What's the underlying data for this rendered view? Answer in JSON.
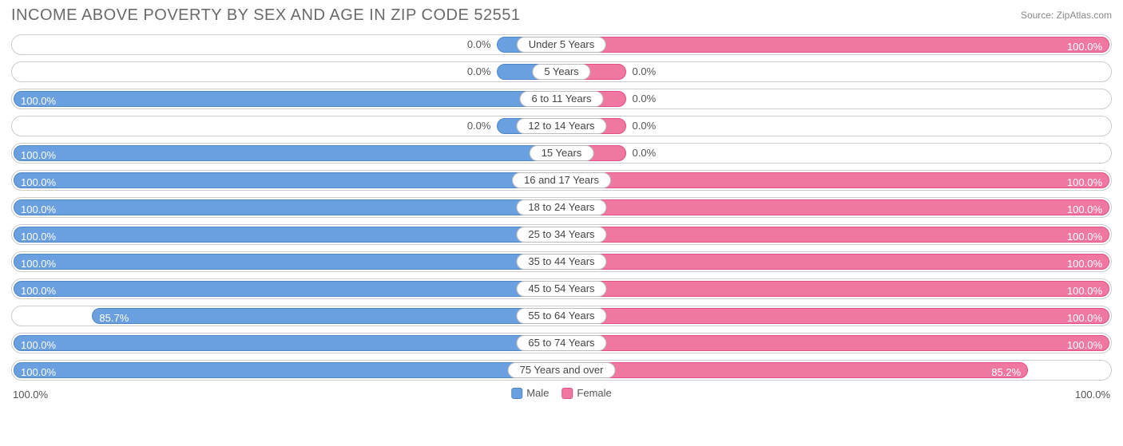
{
  "title": "INCOME ABOVE POVERTY BY SEX AND AGE IN ZIP CODE 52551",
  "source": "Source: ZipAtlas.com",
  "axis": {
    "left": "100.0%",
    "right": "100.0%",
    "max": 100.0
  },
  "colors": {
    "male_fill": "#6a9fe0",
    "male_border": "#4f86c6",
    "female_fill": "#f078a0",
    "female_border": "#e05080",
    "track_border": "#cccccc",
    "text_inside": "#ffffff",
    "text_outside": "#555555",
    "title_color": "#6a6a6a"
  },
  "legend": {
    "male": "Male",
    "female": "Female"
  },
  "min_stub_pct": 12,
  "rows": [
    {
      "age": "Under 5 Years",
      "male": 0.0,
      "male_label": "0.0%",
      "female": 100.0,
      "female_label": "100.0%"
    },
    {
      "age": "5 Years",
      "male": 0.0,
      "male_label": "0.0%",
      "female": 0.0,
      "female_label": "0.0%"
    },
    {
      "age": "6 to 11 Years",
      "male": 100.0,
      "male_label": "100.0%",
      "female": 0.0,
      "female_label": "0.0%"
    },
    {
      "age": "12 to 14 Years",
      "male": 0.0,
      "male_label": "0.0%",
      "female": 0.0,
      "female_label": "0.0%"
    },
    {
      "age": "15 Years",
      "male": 100.0,
      "male_label": "100.0%",
      "female": 0.0,
      "female_label": "0.0%"
    },
    {
      "age": "16 and 17 Years",
      "male": 100.0,
      "male_label": "100.0%",
      "female": 100.0,
      "female_label": "100.0%"
    },
    {
      "age": "18 to 24 Years",
      "male": 100.0,
      "male_label": "100.0%",
      "female": 100.0,
      "female_label": "100.0%"
    },
    {
      "age": "25 to 34 Years",
      "male": 100.0,
      "male_label": "100.0%",
      "female": 100.0,
      "female_label": "100.0%"
    },
    {
      "age": "35 to 44 Years",
      "male": 100.0,
      "male_label": "100.0%",
      "female": 100.0,
      "female_label": "100.0%"
    },
    {
      "age": "45 to 54 Years",
      "male": 100.0,
      "male_label": "100.0%",
      "female": 100.0,
      "female_label": "100.0%"
    },
    {
      "age": "55 to 64 Years",
      "male": 85.7,
      "male_label": "85.7%",
      "female": 100.0,
      "female_label": "100.0%"
    },
    {
      "age": "65 to 74 Years",
      "male": 100.0,
      "male_label": "100.0%",
      "female": 100.0,
      "female_label": "100.0%"
    },
    {
      "age": "75 Years and over",
      "male": 100.0,
      "male_label": "100.0%",
      "female": 85.2,
      "female_label": "85.2%"
    }
  ]
}
